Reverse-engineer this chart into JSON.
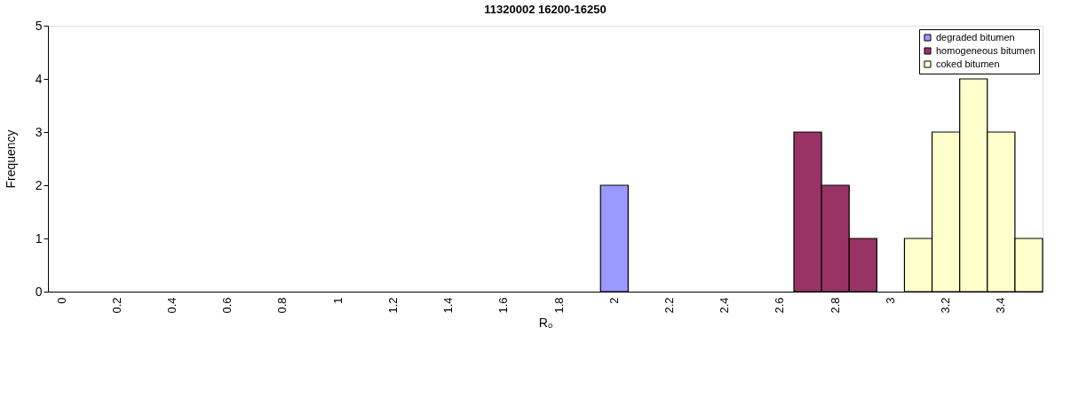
{
  "chart_data": {
    "type": "bar",
    "title": "11320002 16200-16250",
    "xlabel": "Rₒ",
    "ylabel": "Frequency",
    "categories": [
      "0",
      null,
      "0.2",
      null,
      "0.4",
      null,
      "0.6",
      null,
      "0.8",
      null,
      "1",
      null,
      "1.2",
      null,
      "1.4",
      null,
      "1.6",
      null,
      "1.8",
      null,
      "2",
      null,
      "2.2",
      null,
      "2.4",
      null,
      "2.6",
      null,
      "2.8",
      null,
      "3",
      null,
      "3.2",
      null,
      "3.4",
      null
    ],
    "series": [
      {
        "name": "degraded bitumen",
        "color": "#9999ff",
        "values": [
          null,
          null,
          null,
          null,
          null,
          null,
          null,
          null,
          null,
          null,
          null,
          null,
          null,
          null,
          null,
          null,
          null,
          null,
          null,
          null,
          2,
          null,
          null,
          null,
          null,
          null,
          null,
          null,
          null,
          null,
          null,
          null,
          null,
          null,
          null,
          null
        ]
      },
      {
        "name": "homogeneous bitumen",
        "color": "#993366",
        "values": [
          null,
          null,
          null,
          null,
          null,
          null,
          null,
          null,
          null,
          null,
          null,
          null,
          null,
          null,
          null,
          null,
          null,
          null,
          null,
          null,
          null,
          null,
          null,
          null,
          null,
          null,
          null,
          3,
          2,
          1,
          null,
          null,
          null,
          null,
          null,
          null
        ]
      },
      {
        "name": "coked bitumen",
        "color": "#ffffcc",
        "values": [
          null,
          null,
          null,
          null,
          null,
          null,
          null,
          null,
          null,
          null,
          null,
          null,
          null,
          null,
          null,
          null,
          null,
          null,
          null,
          null,
          null,
          null,
          null,
          null,
          null,
          null,
          null,
          null,
          null,
          null,
          null,
          1,
          3,
          4,
          3,
          1
        ]
      }
    ],
    "ylim": [
      0,
      5
    ],
    "yticks": [
      0,
      1,
      2,
      3,
      4,
      5
    ],
    "grid": false,
    "legend": "top right"
  }
}
